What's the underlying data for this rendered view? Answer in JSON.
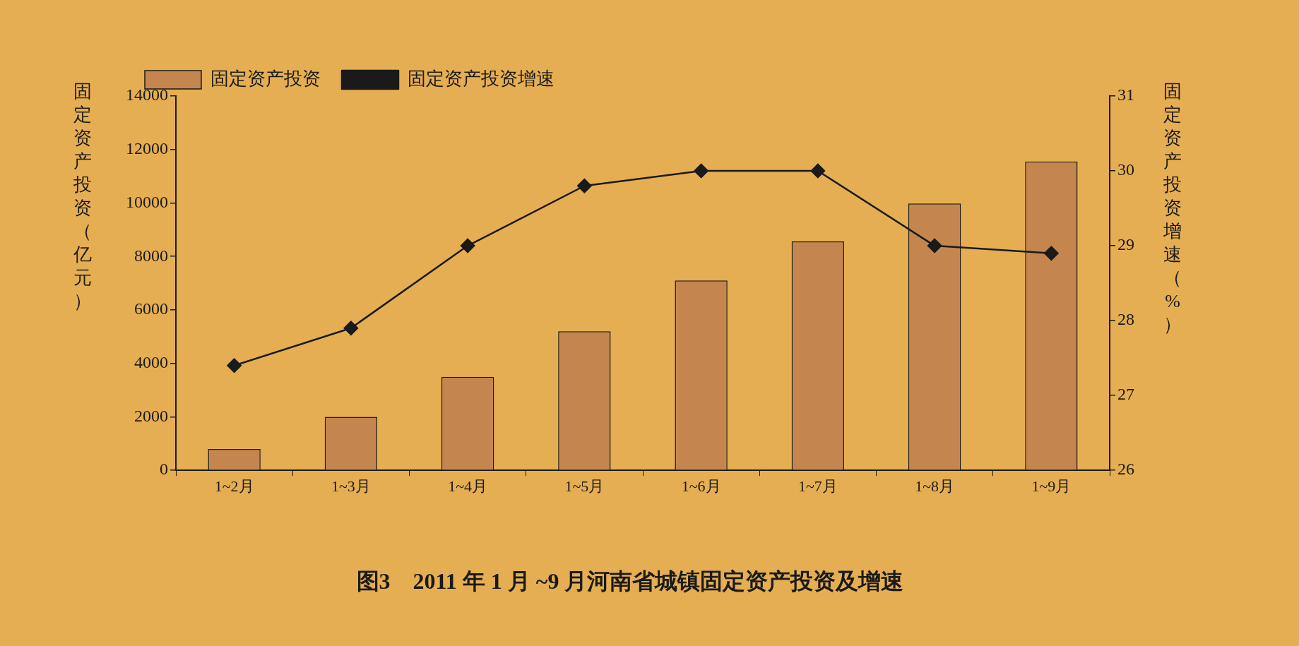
{
  "chart_data": {
    "type": "bar",
    "title": "图3　2011 年 1 月 ~9 月河南省城镇固定资产投资及增速",
    "categories": [
      "1~2月",
      "1~3月",
      "1~4月",
      "1~5月",
      "1~6月",
      "1~7月",
      "1~8月",
      "1~9月"
    ],
    "series": [
      {
        "name": "固定资产投资",
        "color": "#c4864e",
        "values": [
          800,
          2000,
          3500,
          5200,
          7100,
          8560,
          9980,
          11550
        ]
      },
      {
        "name": "固定资产投资增速",
        "type": "line",
        "axis": "y2",
        "color": "#1a1a1a",
        "marker": "diamond",
        "values": [
          27.4,
          27.9,
          29.0,
          29.8,
          30.0,
          30.0,
          29.0,
          28.9
        ]
      }
    ],
    "ylabel": "固定资产投资（亿元）",
    "y2label": "固定资产投资增速（%）",
    "ylim": [
      0,
      14000
    ],
    "yticks": [
      0,
      2000,
      4000,
      6000,
      8000,
      10000,
      12000,
      14000
    ],
    "y2lim": [
      26,
      31
    ],
    "y2ticks": [
      26,
      27,
      28,
      29,
      30,
      31
    ],
    "grid": false,
    "legend": "top"
  }
}
